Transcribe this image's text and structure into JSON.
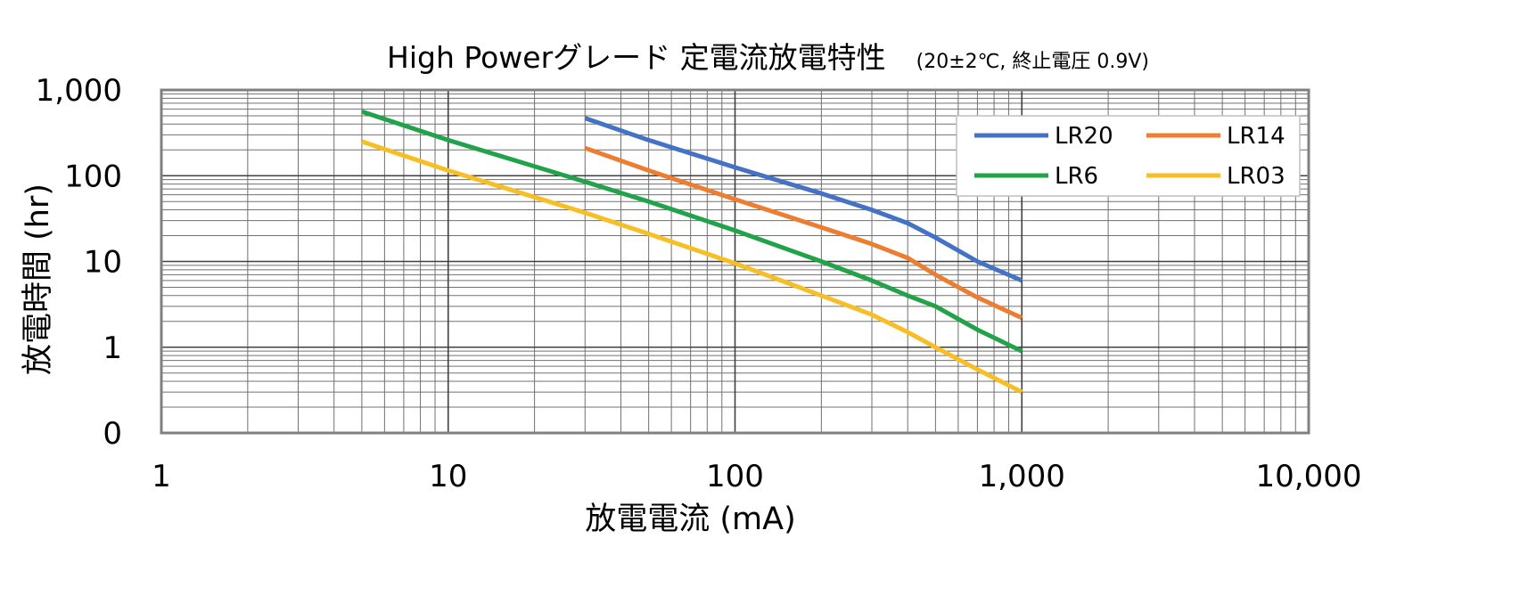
{
  "chart_data": {
    "type": "line",
    "title": "High Powerグレード 定電流放電特性",
    "subtitle": "(20±2℃, 終止電圧 0.9V)",
    "xlabel": "放電電流 (mA)",
    "ylabel": "放電時間 (hr)",
    "x_scale": "log",
    "y_scale": "log",
    "xlim": [
      1,
      10000
    ],
    "ylim": [
      0.1,
      1000
    ],
    "x_ticks": [
      1,
      10,
      100,
      1000,
      10000
    ],
    "x_tick_labels": [
      "1",
      "10",
      "100",
      "1,000",
      "10,000"
    ],
    "y_ticks": [
      0.1,
      1,
      10,
      100,
      1000
    ],
    "y_tick_labels": [
      "0",
      "1",
      "10",
      "100",
      "1,000"
    ],
    "grid": true,
    "legend_position": "top-right",
    "series": [
      {
        "name": "LR20",
        "color": "#4472C4",
        "x": [
          30,
          50,
          100,
          200,
          300,
          400,
          500,
          700,
          1000
        ],
        "y": [
          470,
          260,
          125,
          62,
          40,
          28,
          19,
          10,
          6
        ]
      },
      {
        "name": "LR14",
        "color": "#ED7D31",
        "x": [
          30,
          50,
          100,
          200,
          300,
          400,
          500,
          700,
          1000
        ],
        "y": [
          210,
          115,
          53,
          25,
          16,
          11,
          7,
          3.8,
          2.2
        ]
      },
      {
        "name": "LR6",
        "color": "#22A34A",
        "x": [
          5,
          10,
          30,
          50,
          100,
          200,
          300,
          400,
          500,
          700,
          1000
        ],
        "y": [
          560,
          260,
          85,
          50,
          23,
          10,
          6,
          4,
          3,
          1.6,
          0.9
        ]
      },
      {
        "name": "LR03",
        "color": "#F8BE25",
        "x": [
          5,
          10,
          30,
          50,
          100,
          200,
          300,
          400,
          500,
          700,
          1000
        ],
        "y": [
          250,
          115,
          37,
          21,
          9.5,
          4,
          2.4,
          1.5,
          1,
          0.55,
          0.3
        ]
      }
    ]
  }
}
